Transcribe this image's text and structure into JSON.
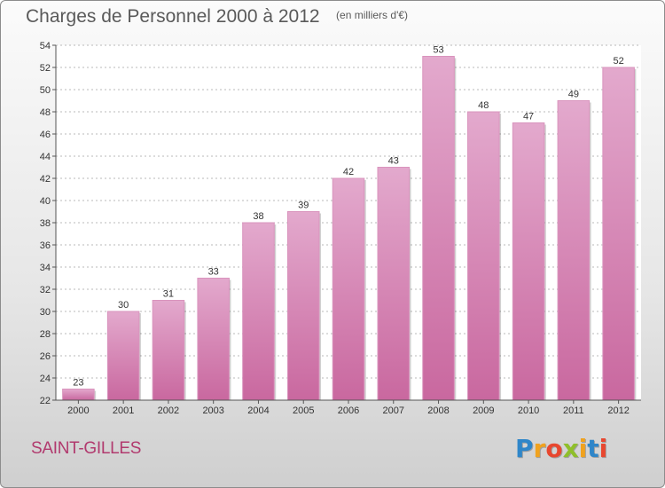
{
  "header": {
    "title": "Charges de Personnel 2000 à 2012",
    "subtitle": "(en milliers d'€)"
  },
  "footer": {
    "place": "SAINT-GILLES",
    "logo_letters": [
      "P",
      "r",
      "o",
      "x",
      "i",
      "t",
      "i"
    ],
    "logo_colors": [
      "#2f86c9",
      "#f0a21f",
      "#e8472f",
      "#8fbf2a",
      "#f0a21f",
      "#2f86c9",
      "#e8472f"
    ]
  },
  "chart_data": {
    "type": "bar",
    "title": "Charges de Personnel 2000 à 2012",
    "subtitle": "(en milliers d'€)",
    "categories": [
      "2000",
      "2001",
      "2002",
      "2003",
      "2004",
      "2005",
      "2006",
      "2007",
      "2008",
      "2009",
      "2010",
      "2011",
      "2012"
    ],
    "values": [
      23,
      30,
      31,
      33,
      38,
      39,
      42,
      43,
      53,
      48,
      47,
      49,
      52
    ],
    "ylim": [
      22,
      54
    ],
    "yticks": [
      22,
      24,
      26,
      28,
      30,
      32,
      34,
      36,
      38,
      40,
      42,
      44,
      46,
      48,
      50,
      52,
      54
    ],
    "grid": true,
    "bar_color": "#c9689f",
    "bar_color_light": "#e3a9cd",
    "xlabel": "",
    "ylabel": ""
  }
}
